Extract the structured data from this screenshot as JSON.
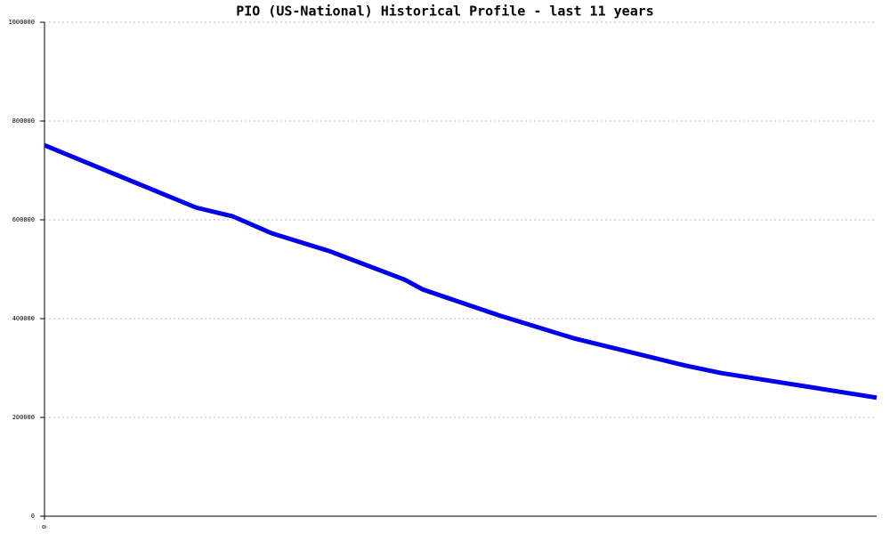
{
  "chart_data": {
    "type": "line",
    "title": "PIO (US-National) Historical Profile - last 11 years",
    "x": [
      0,
      2.0,
      2.49,
      3.0,
      3.76,
      4.76,
      5.0,
      6.0,
      7.0,
      8.47,
      8.94,
      11
    ],
    "series": [
      {
        "color": "#0000ee",
        "values": [
          751000,
          625000,
          607000,
          573000,
          537000,
          479000,
          459000,
          407000,
          360000,
          305000,
          290000,
          240000
        ]
      }
    ],
    "xlim": [
      0,
      11
    ],
    "xticks": [
      0
    ],
    "ylim": [
      0,
      1000000
    ],
    "yticks": [
      0,
      200000,
      400000,
      600000,
      800000,
      1000000
    ],
    "grid": true
  }
}
